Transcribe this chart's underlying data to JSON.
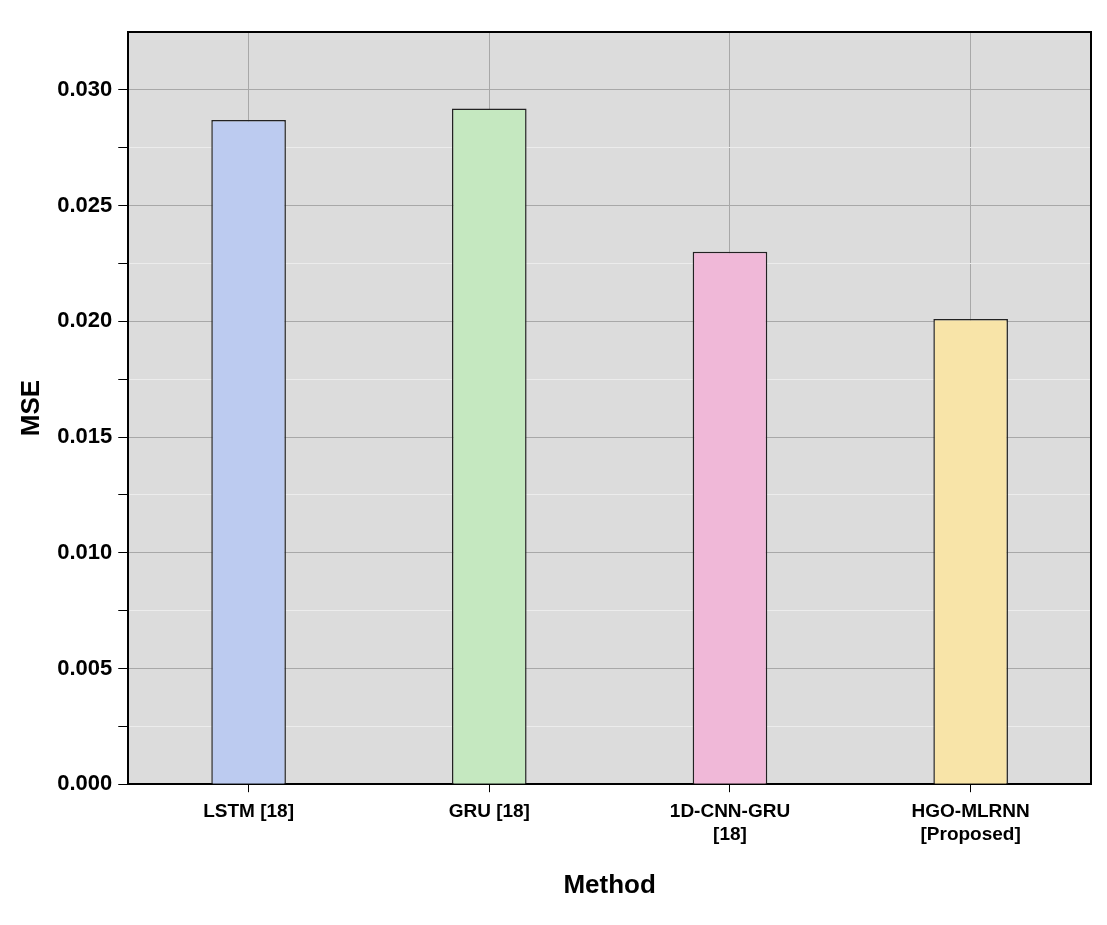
{
  "chart_data": {
    "type": "bar",
    "xlabel": "Method",
    "ylabel": "MSE",
    "categories": [
      "LSTM [18]",
      "GRU [18]",
      "1D-CNN-GRU [18]",
      "HGO-MLRNN [Proposed]"
    ],
    "values": [
      0.0287,
      0.0292,
      0.023,
      0.0201
    ],
    "colors": [
      "#bccbf0",
      "#c5e8c0",
      "#f0b8d8",
      "#f8e4a8"
    ],
    "ylim": [
      0,
      0.0325
    ],
    "yticks": [
      {
        "value": 0,
        "label": "0.000"
      },
      {
        "value": 0.0025,
        "label": null
      },
      {
        "value": 0.005,
        "label": "0.005"
      },
      {
        "value": 0.0075,
        "label": null
      },
      {
        "value": 0.01,
        "label": "0.010"
      },
      {
        "value": 0.0125,
        "label": null
      },
      {
        "value": 0.015,
        "label": "0.015"
      },
      {
        "value": 0.0175,
        "label": null
      },
      {
        "value": 0.02,
        "label": "0.020"
      },
      {
        "value": 0.0225,
        "label": null
      },
      {
        "value": 0.025,
        "label": "0.025"
      },
      {
        "value": 0.0275,
        "label": null
      },
      {
        "value": 0.03,
        "label": "0.030"
      }
    ],
    "grid": true,
    "legend": false
  }
}
